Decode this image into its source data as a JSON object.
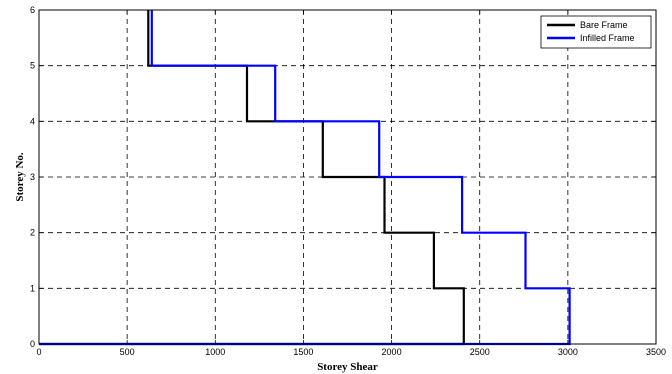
{
  "chart_data": {
    "type": "line",
    "step": true,
    "xlabel": "Storey Shear",
    "ylabel": "Storey No.",
    "xlim": [
      0,
      3500
    ],
    "ylim": [
      0,
      6
    ],
    "xticks": [
      0,
      500,
      1000,
      1500,
      2000,
      2500,
      3000,
      3500
    ],
    "yticks": [
      0,
      1,
      2,
      3,
      4,
      5,
      6
    ],
    "grid": true,
    "legend": "top-right",
    "series": [
      {
        "name": "Bare Frame",
        "color": "#000000",
        "storey_shear": [
          2410,
          2240,
          1960,
          1610,
          1180,
          620
        ],
        "x": [
          0,
          2410,
          2410,
          2240,
          2240,
          1960,
          1960,
          1610,
          1610,
          1180,
          1180,
          620,
          620
        ],
        "y": [
          0,
          0,
          1,
          1,
          2,
          2,
          3,
          3,
          4,
          4,
          5,
          5,
          6
        ]
      },
      {
        "name": "Infilled Frame",
        "color": "#0000ff",
        "storey_shear": [
          3010,
          2760,
          2400,
          1930,
          1340,
          640
        ],
        "x": [
          0,
          3010,
          3010,
          2760,
          2760,
          2400,
          2400,
          1930,
          1930,
          1340,
          1340,
          640,
          640
        ],
        "y": [
          0,
          0,
          1,
          1,
          2,
          2,
          3,
          3,
          4,
          4,
          5,
          5,
          6
        ]
      }
    ]
  }
}
